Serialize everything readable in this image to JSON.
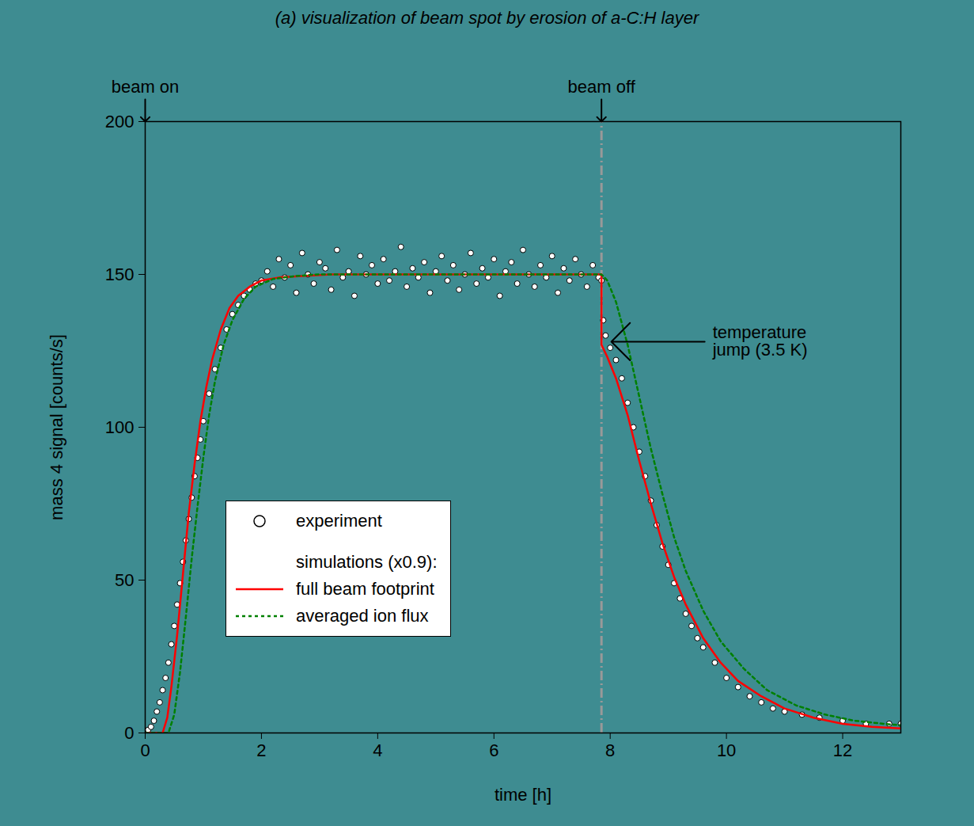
{
  "chart_data": {
    "type": "line",
    "title": "(a) visualization of beam spot by erosion of a-C:H layer",
    "x_label": "time [h]",
    "y_label": "mass 4 signal [counts/s]",
    "xlim": [
      0,
      13
    ],
    "ylim": [
      0,
      200
    ],
    "xticks": [
      0,
      2,
      4,
      6,
      8,
      10,
      12
    ],
    "yticks": [
      0,
      50,
      100,
      150,
      200
    ],
    "legend": "lower left",
    "legend_title": "simulations (x0.9):",
    "series": [
      {
        "name": "experiment",
        "type": "scatter",
        "marker": "circle",
        "color": "#000000",
        "x": [
          0,
          0.05,
          0.1,
          0.15,
          0.2,
          0.25,
          0.3,
          0.35,
          0.4,
          0.45,
          0.5,
          0.55,
          0.6,
          0.65,
          0.7,
          0.75,
          0.8,
          0.85,
          0.9,
          0.95,
          1.0,
          1.1,
          1.2,
          1.3,
          1.4,
          1.5,
          1.6,
          1.7,
          1.8,
          1.9,
          2.0,
          2.1,
          2.2,
          2.3,
          2.4,
          2.5,
          2.6,
          2.7,
          2.8,
          2.9,
          3.0,
          3.1,
          3.2,
          3.3,
          3.4,
          3.5,
          3.6,
          3.7,
          3.8,
          3.9,
          4.0,
          4.1,
          4.2,
          4.3,
          4.4,
          4.5,
          4.6,
          4.7,
          4.8,
          4.9,
          5.0,
          5.1,
          5.2,
          5.3,
          5.4,
          5.5,
          5.6,
          5.7,
          5.8,
          5.9,
          6.0,
          6.1,
          6.2,
          6.3,
          6.4,
          6.5,
          6.6,
          6.7,
          6.8,
          6.9,
          7.0,
          7.1,
          7.2,
          7.3,
          7.4,
          7.5,
          7.6,
          7.7,
          7.8,
          7.85,
          7.88,
          7.92,
          8.0,
          8.1,
          8.2,
          8.3,
          8.4,
          8.5,
          8.6,
          8.7,
          8.8,
          8.9,
          9.0,
          9.1,
          9.2,
          9.3,
          9.4,
          9.5,
          9.6,
          9.8,
          10.0,
          10.2,
          10.4,
          10.6,
          10.8,
          11.0,
          11.3,
          11.6,
          12.0,
          12.4,
          12.8,
          13.0
        ],
        "values": [
          0,
          1,
          2,
          4,
          7,
          10,
          14,
          18,
          23,
          29,
          35,
          42,
          49,
          56,
          63,
          70,
          77,
          84,
          90,
          96,
          102,
          111,
          119,
          126,
          132,
          137,
          140,
          143,
          145,
          147,
          148,
          151,
          146,
          155,
          149,
          153,
          144,
          157,
          150,
          147,
          154,
          152,
          145,
          158,
          149,
          151,
          143,
          156,
          150,
          153,
          147,
          155,
          148,
          151,
          159,
          146,
          152,
          149,
          154,
          144,
          151,
          156,
          148,
          153,
          145,
          150,
          157,
          147,
          152,
          149,
          155,
          143,
          151,
          154,
          147,
          158,
          150,
          146,
          153,
          149,
          156,
          144,
          152,
          148,
          155,
          150,
          146,
          153,
          149,
          148,
          135,
          130,
          126,
          122,
          116,
          108,
          100,
          92,
          84,
          76,
          68,
          61,
          55,
          49,
          44,
          39,
          35,
          31,
          28,
          23,
          18,
          15,
          12,
          10,
          8,
          7,
          6,
          5,
          4,
          3,
          3,
          3
        ]
      },
      {
        "name": "full beam footprint",
        "type": "line",
        "line_style": "solid",
        "color": "#ff0000",
        "x": [
          0,
          0.3,
          0.38,
          0.45,
          0.55,
          0.65,
          0.75,
          0.85,
          0.95,
          1.05,
          1.15,
          1.3,
          1.45,
          1.6,
          1.8,
          2.0,
          2.3,
          2.7,
          3.2,
          4,
          7.85,
          7.85,
          7.95,
          8.1,
          8.3,
          8.5,
          8.7,
          8.9,
          9.1,
          9.3,
          9.6,
          9.9,
          10.2,
          10.6,
          11,
          11.5,
          12,
          12.5,
          13
        ],
        "values": [
          0,
          0,
          5,
          15,
          32,
          52,
          72,
          88,
          102,
          113,
          122,
          132,
          139,
          143,
          146,
          148,
          149,
          149.5,
          150,
          150,
          150,
          127,
          123,
          116,
          104,
          89,
          75,
          62,
          51,
          42,
          31,
          23,
          17,
          12,
          8,
          5,
          3,
          2,
          1.5
        ]
      },
      {
        "name": "averaged ion flux",
        "type": "line",
        "line_style": "dotted",
        "color": "#008000",
        "x": [
          0,
          0.4,
          0.5,
          0.6,
          0.7,
          0.8,
          0.9,
          1.0,
          1.1,
          1.2,
          1.35,
          1.5,
          1.7,
          1.9,
          2.2,
          2.6,
          3.0,
          3.5,
          4.0,
          7.85,
          7.95,
          8.1,
          8.3,
          8.5,
          8.7,
          8.9,
          9.1,
          9.3,
          9.6,
          9.9,
          10.3,
          10.7,
          11.2,
          11.7,
          12.2,
          12.7,
          13
        ],
        "values": [
          0,
          0,
          6,
          20,
          38,
          57,
          74,
          90,
          104,
          115,
          127,
          135,
          142,
          146,
          148.5,
          149.5,
          150,
          150,
          150,
          150,
          148,
          141,
          127,
          110,
          93,
          78,
          64,
          53,
          40,
          30,
          21,
          14,
          9,
          6,
          4,
          3,
          2.5
        ]
      }
    ],
    "vlines": [
      {
        "x": 7.85,
        "color": "#999999",
        "line_style": "dashdot"
      }
    ],
    "annotations": [
      {
        "text": "beam on",
        "x": 0,
        "y": 200
      },
      {
        "text": "beam off",
        "x": 7.85,
        "y": 200
      },
      {
        "text": "temperature jump (3.5 K)",
        "x": 8.02,
        "y": 128
      }
    ]
  }
}
